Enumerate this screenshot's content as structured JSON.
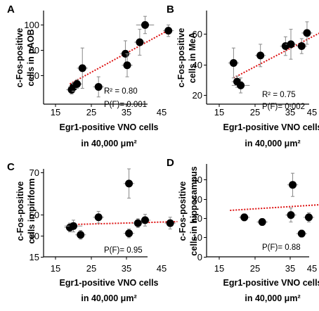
{
  "colors": {
    "points": "#000000",
    "trendline": "#dd1111",
    "axes": "#000000",
    "errorbars": "#888888"
  },
  "chart_data": [
    {
      "type": "scatter",
      "panel": "A",
      "ylabel": [
        "c-Fos-positive",
        "cells in pAOB"
      ],
      "xlabel": [
        "Egr1-positive VNO cells",
        "in 40,000 μm²"
      ],
      "xlim": [
        15,
        50
      ],
      "xticks": [
        "15",
        "25",
        "35",
        "45"
      ],
      "ylim": [
        40,
        105
      ],
      "yticks": [
        "60",
        "80",
        "100"
      ],
      "stats": [
        "R² = 0.80",
        "P(F)=  0.001"
      ],
      "trend": {
        "x0": 19,
        "y0": 54,
        "x1": 47,
        "y1": 92
      },
      "points": [
        {
          "x": 19.5,
          "y": 50,
          "xerr": 1.5,
          "yerr": 3
        },
        {
          "x": 20.0,
          "y": 52,
          "xerr": 1.5,
          "yerr": 3
        },
        {
          "x": 21.0,
          "y": 54,
          "xerr": 1.5,
          "yerr": 3
        },
        {
          "x": 22.5,
          "y": 65,
          "xerr": 1.5,
          "yerr": 14
        },
        {
          "x": 27.0,
          "y": 52,
          "xerr": 1.5,
          "yerr": 7
        },
        {
          "x": 34.5,
          "y": 75,
          "xerr": 1.5,
          "yerr": 9
        },
        {
          "x": 35.0,
          "y": 67,
          "xerr": 1.5,
          "yerr": 8
        },
        {
          "x": 38.5,
          "y": 83,
          "xerr": 1.5,
          "yerr": 9
        },
        {
          "x": 40.0,
          "y": 95,
          "xerr": 2.5,
          "yerr": 6
        },
        {
          "x": 46.5,
          "y": 91,
          "xerr": 1.5,
          "yerr": 4
        }
      ]
    },
    {
      "type": "scatter",
      "panel": "B",
      "ylabel": [
        "c-Fos-positive",
        "cells in MeA"
      ],
      "xlabel": [
        "Egr1-positive VNO cells",
        "in 40,000 μm²"
      ],
      "xlim": [
        15,
        50
      ],
      "xticks": [
        "15",
        "25",
        "35",
        "45"
      ],
      "ylim": [
        20,
        70
      ],
      "yticks": [
        "20",
        "40",
        "60"
      ],
      "stats": [
        "R² = 0.75",
        "P(F)=  0.002"
      ],
      "trend": {
        "x0": 19,
        "y0": 34,
        "x1": 49,
        "y1": 64
      },
      "points": [
        {
          "x": 19.0,
          "y": 42,
          "xerr": 1.5,
          "yerr": 8
        },
        {
          "x": 20.0,
          "y": 32,
          "xerr": 1.5,
          "yerr": 3
        },
        {
          "x": 21.0,
          "y": 30,
          "xerr": 2.5,
          "yerr": 4
        },
        {
          "x": 26.5,
          "y": 46,
          "xerr": 1.5,
          "yerr": 6
        },
        {
          "x": 33.5,
          "y": 51,
          "xerr": 1.5,
          "yerr": 5
        },
        {
          "x": 35.0,
          "y": 52,
          "xerr": 1.5,
          "yerr": 8
        },
        {
          "x": 38.0,
          "y": 51,
          "xerr": 1.5,
          "yerr": 4
        },
        {
          "x": 39.5,
          "y": 58,
          "xerr": 1.5,
          "yerr": 6
        },
        {
          "x": 47.0,
          "y": 57,
          "xerr": 1.5,
          "yerr": 4
        }
      ]
    },
    {
      "type": "scatter",
      "panel": "C",
      "ylabel": [
        "c-Fos-positive",
        "cells in piriform"
      ],
      "xlabel": [
        "Egr1-positive VNO cells",
        "in 40,000 μm²"
      ],
      "xlim": [
        15,
        50
      ],
      "xticks": [
        "15",
        "25",
        "35",
        "45"
      ],
      "ylim": [
        15,
        75
      ],
      "yticks": [
        "15",
        "30",
        "50",
        "70"
      ],
      "stats": [
        "P(F)=  0.95"
      ],
      "trend": {
        "x0": 19,
        "y0": 37,
        "x1": 49,
        "y1": 39
      },
      "points": [
        {
          "x": 19.0,
          "y": 35,
          "xerr": 1.5,
          "yerr": 3
        },
        {
          "x": 20.0,
          "y": 36,
          "xerr": 2.5,
          "yerr": 4
        },
        {
          "x": 22.0,
          "y": 30,
          "xerr": 1.5,
          "yerr": 3
        },
        {
          "x": 27.0,
          "y": 42,
          "xerr": 1.5,
          "yerr": 4
        },
        {
          "x": 35.5,
          "y": 65,
          "xerr": 1.5,
          "yerr": 10
        },
        {
          "x": 35.5,
          "y": 31,
          "xerr": 1.5,
          "yerr": 3
        },
        {
          "x": 38.0,
          "y": 38,
          "xerr": 1.5,
          "yerr": 3
        },
        {
          "x": 40.0,
          "y": 40,
          "xerr": 1.5,
          "yerr": 4
        },
        {
          "x": 47.0,
          "y": 38,
          "xerr": 1.5,
          "yerr": 4
        }
      ]
    },
    {
      "type": "scatter",
      "panel": "D",
      "ylabel": [
        "c-Fos-positive",
        "cells in hippocampus"
      ],
      "xlabel": [
        "Egr1-positive VNO cells",
        "in 40,000 μm²"
      ],
      "xlim": [
        15,
        50
      ],
      "xticks": [
        "15",
        "25",
        "35",
        "45"
      ],
      "ylim": [
        0,
        40
      ],
      "yticks": [
        "0",
        "10",
        "20",
        "30",
        "40"
      ],
      "stats": [
        "P(F)=  0.88"
      ],
      "trend": {
        "x0": 18,
        "y0": 20,
        "x1": 49,
        "y1": 23
      },
      "points": [
        {
          "x": 22.0,
          "y": 17,
          "xerr": 1.5,
          "yerr": 1.5
        },
        {
          "x": 27.0,
          "y": 15,
          "xerr": 1.5,
          "yerr": 1.5
        },
        {
          "x": 35.0,
          "y": 18,
          "xerr": 1.5,
          "yerr": 3
        },
        {
          "x": 35.5,
          "y": 31,
          "xerr": 1.5,
          "yerr": 5
        },
        {
          "x": 38.0,
          "y": 10,
          "xerr": 1.5,
          "yerr": 1.5
        },
        {
          "x": 40.0,
          "y": 17,
          "xerr": 1.5,
          "yerr": 2
        },
        {
          "x": 47.0,
          "y": 25,
          "xerr": 1.5,
          "yerr": 2
        }
      ]
    }
  ]
}
